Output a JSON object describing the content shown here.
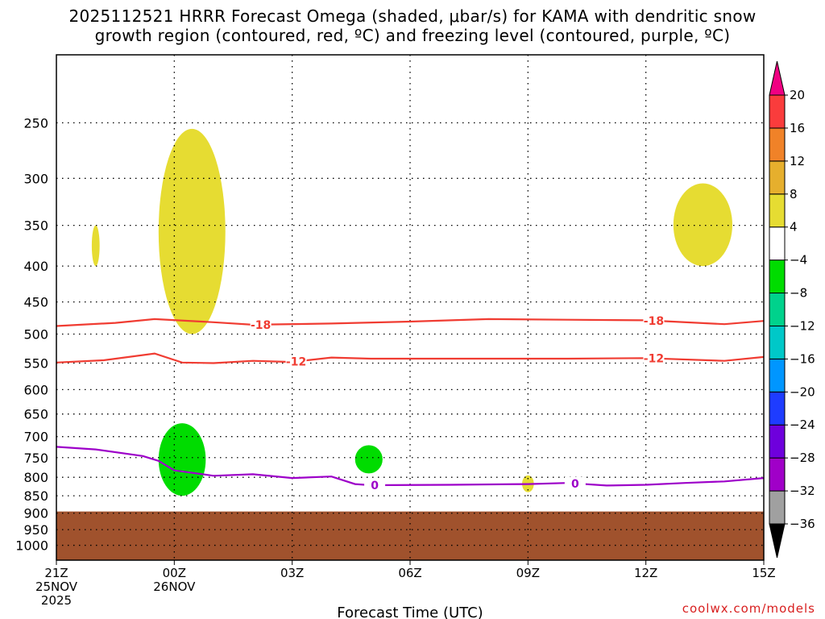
{
  "title": {
    "line1": "2025112521 HRRR Forecast Omega (shaded, μbar/s) for KAMA with dendritic snow",
    "line2": "growth region (contoured, red, ºC) and freezing level (contoured, purple, ºC)"
  },
  "credit": "coolwx.com/models",
  "chart_data": {
    "type": "time-height cross-section",
    "title": "2025112521 HRRR Forecast Omega (shaded, μbar/s) for KAMA with dendritic snow growth region (contoured, red, ºC) and freezing level (contoured, purple, ºC)",
    "xlabel": "Forecast Time (UTC)",
    "ylabel": "",
    "x_range_hours": [
      0,
      18
    ],
    "x_ticks": [
      {
        "hour": 0,
        "lines": [
          "21Z",
          "25NOV",
          "2025"
        ]
      },
      {
        "hour": 3,
        "lines": [
          "00Z",
          "26NOV"
        ]
      },
      {
        "hour": 6,
        "lines": [
          "03Z"
        ]
      },
      {
        "hour": 9,
        "lines": [
          "06Z"
        ]
      },
      {
        "hour": 12,
        "lines": [
          "09Z"
        ]
      },
      {
        "hour": 15,
        "lines": [
          "12Z"
        ]
      },
      {
        "hour": 18,
        "lines": [
          "15Z"
        ]
      }
    ],
    "y_axis": {
      "scale": "log-pressure",
      "units": "hPa",
      "range": [
        1050,
        200
      ],
      "inverted": true
    },
    "y_ticks": [
      250,
      300,
      350,
      400,
      450,
      500,
      550,
      600,
      650,
      700,
      750,
      800,
      850,
      900,
      950,
      1000
    ],
    "colorbar": {
      "levels": [
        -36,
        -32,
        -28,
        -24,
        -20,
        -16,
        -12,
        -8,
        -4,
        4,
        8,
        12,
        16,
        20
      ],
      "colors": [
        "#000000",
        "#a0a0a0",
        "#a000c8",
        "#6e00dc",
        "#1e3cff",
        "#0096ff",
        "#00c8c8",
        "#00d28c",
        "#00dc00",
        "#ffffff",
        "#e6dc32",
        "#e6af2d",
        "#f08228",
        "#fa3c3c",
        "#f00082"
      ],
      "extend": "both"
    },
    "omega_regions": [
      {
        "category": "4 to 8",
        "color": "#e6dc32",
        "time_range_hours": [
          2.6,
          4.3
        ],
        "pressure_range_hPa": [
          255,
          500
        ]
      },
      {
        "category": "4 to 8",
        "color": "#e6dc32",
        "time_range_hours": [
          0.9,
          1.1
        ],
        "pressure_range_hPa": [
          350,
          400
        ]
      },
      {
        "category": "4 to 8",
        "color": "#e6dc32",
        "time_range_hours": [
          15.7,
          17.2
        ],
        "pressure_range_hPa": [
          305,
          400
        ]
      },
      {
        "category": "4 to 8",
        "color": "#e6dc32",
        "time_range_hours": [
          11.85,
          12.15
        ],
        "pressure_range_hPa": [
          795,
          840
        ]
      },
      {
        "category": "-8 to -4",
        "color": "#00dc00",
        "time_range_hours": [
          2.6,
          3.8
        ],
        "pressure_range_hPa": [
          670,
          850
        ]
      },
      {
        "category": "-8 to -4",
        "color": "#00dc00",
        "time_range_hours": [
          7.6,
          8.3
        ],
        "pressure_range_hPa": [
          720,
          790
        ]
      }
    ],
    "contours": [
      {
        "label": "-18",
        "color": "#f03c32",
        "unit": "ºC",
        "points": [
          [
            0,
            487
          ],
          [
            1.5,
            482
          ],
          [
            2.5,
            476
          ],
          [
            4,
            481
          ],
          [
            5,
            485
          ],
          [
            7,
            483
          ],
          [
            9,
            480
          ],
          [
            11,
            476
          ],
          [
            13,
            477
          ],
          [
            15,
            478
          ],
          [
            17,
            484
          ],
          [
            18,
            479
          ]
        ],
        "label_positions_hours": [
          5.2,
          15.2
        ]
      },
      {
        "label": "-12",
        "color": "#f03c32",
        "unit": "ºC",
        "points": [
          [
            0,
            549
          ],
          [
            1.2,
            545
          ],
          [
            2.5,
            533
          ],
          [
            3.2,
            549
          ],
          [
            4,
            550
          ],
          [
            5,
            546
          ],
          [
            6,
            548
          ],
          [
            7,
            540
          ],
          [
            8,
            542
          ],
          [
            10,
            542
          ],
          [
            13,
            542
          ],
          [
            15,
            541
          ],
          [
            17,
            546
          ],
          [
            18,
            539
          ]
        ],
        "label_positions_hours": [
          6.1,
          15.2
        ]
      },
      {
        "label": "0",
        "color": "#9d00c9",
        "unit": "ºC",
        "points": [
          [
            0,
            724
          ],
          [
            1,
            730
          ],
          [
            2.2,
            746
          ],
          [
            2.6,
            758
          ],
          [
            3,
            782
          ],
          [
            4,
            796
          ],
          [
            5,
            792
          ],
          [
            6,
            802
          ],
          [
            7,
            798
          ],
          [
            7.6,
            818
          ],
          [
            8,
            821
          ],
          [
            10,
            820
          ],
          [
            12,
            818
          ],
          [
            13,
            815
          ],
          [
            14,
            822
          ],
          [
            15,
            820
          ],
          [
            16,
            815
          ],
          [
            17,
            811
          ],
          [
            18,
            802
          ]
        ],
        "label_positions_hours": [
          8.1,
          13.2
        ]
      }
    ],
    "terrain": {
      "color": "#a0522d",
      "top_pressure_hPa": 895
    }
  }
}
